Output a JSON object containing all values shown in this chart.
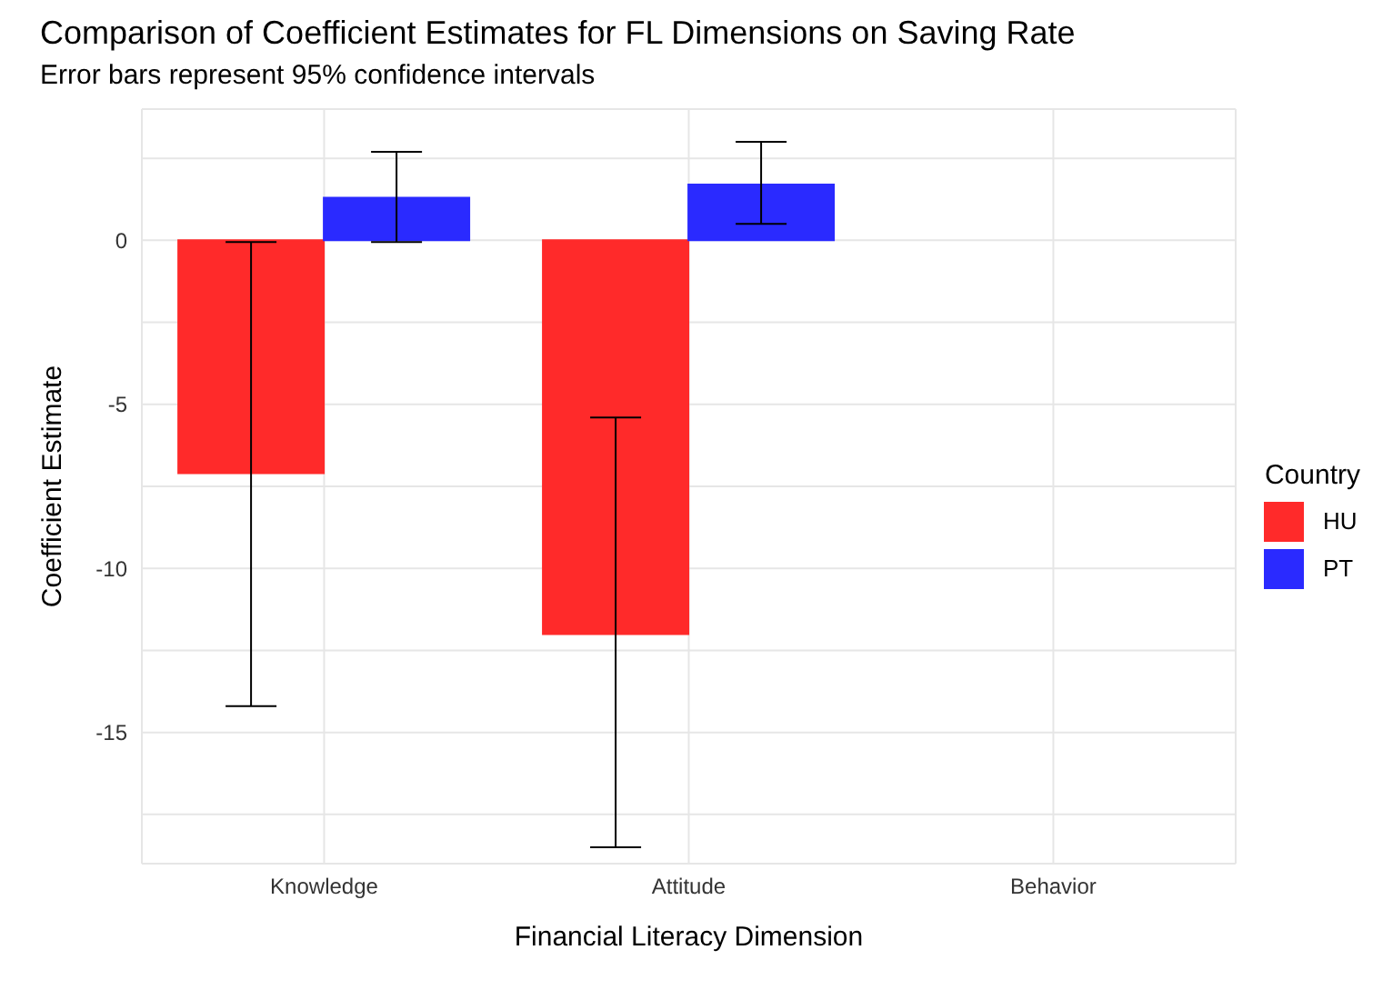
{
  "chart_data": {
    "type": "bar",
    "title": "Comparison of Coefficient Estimates for FL Dimensions on Saving Rate",
    "subtitle": "Error bars represent 95% confidence intervals",
    "xlabel": "Financial Literacy Dimension",
    "ylabel": "Coefficient Estimate",
    "legend_title": "Country",
    "categories": [
      "Knowledge",
      "Attitude",
      "Behavior"
    ],
    "series": [
      {
        "name": "HU",
        "color": "#ff2a2a",
        "values": [
          -7.1,
          -12.0,
          null
        ],
        "errors": [
          [
            -14.2,
            -0.05
          ],
          [
            -18.5,
            -5.4
          ],
          null
        ]
      },
      {
        "name": "PT",
        "color": "#2a2aff",
        "values": [
          1.3,
          1.7,
          null
        ],
        "errors": [
          [
            -0.05,
            2.7
          ],
          [
            0.5,
            3.0
          ],
          null
        ]
      }
    ],
    "ylim": [
      -19,
      4
    ],
    "yticks": [
      {
        "value": 2.5,
        "label": null
      },
      0,
      {
        "value": -2.5,
        "label": null
      },
      -5,
      {
        "value": -7.5,
        "label": null
      },
      -10,
      {
        "value": -12.5,
        "label": null
      },
      -15,
      {
        "value": -17.5,
        "label": null
      }
    ],
    "grid": true,
    "legend": "right"
  }
}
